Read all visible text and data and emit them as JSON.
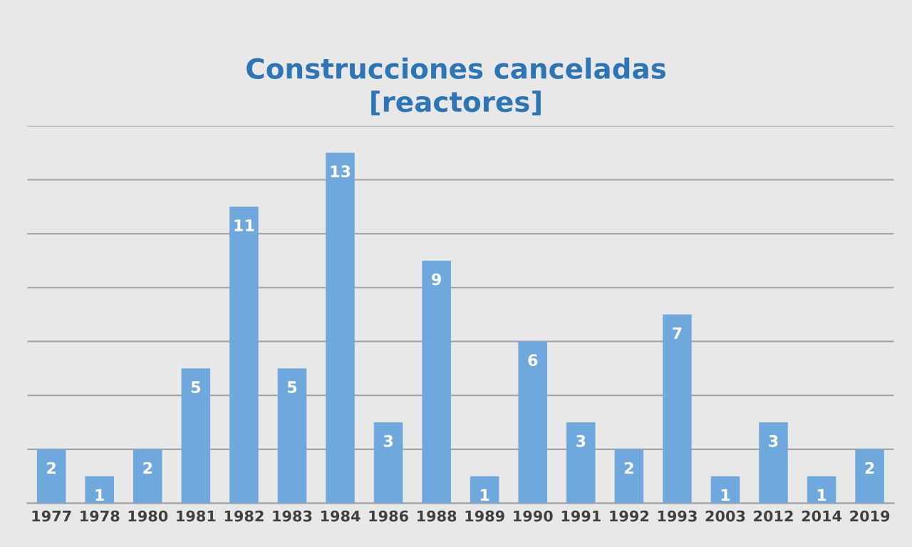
{
  "chart_data": {
    "type": "bar",
    "title": "Construcciones canceladas\n[reactores]",
    "categories": [
      "1977",
      "1978",
      "1980",
      "1981",
      "1982",
      "1983",
      "1984",
      "1986",
      "1988",
      "1989",
      "1990",
      "1991",
      "1992",
      "1993",
      "2003",
      "2012",
      "2014",
      "2019"
    ],
    "values": [
      2,
      1,
      2,
      5,
      11,
      5,
      13,
      3,
      9,
      1,
      6,
      3,
      2,
      7,
      1,
      3,
      1,
      2
    ],
    "color": "#6fa8dc",
    "ylim": [
      0,
      14
    ],
    "yticks": [
      {
        "value": 0,
        "label": null
      },
      {
        "value": 2,
        "label": null
      },
      {
        "value": 4,
        "label": null
      },
      {
        "value": 6,
        "label": null
      },
      {
        "value": 8,
        "label": null
      },
      {
        "value": 10,
        "label": null
      },
      {
        "value": 12,
        "label": null
      },
      {
        "value": 14,
        "label": null
      }
    ],
    "grid": "y",
    "data_labels": true,
    "tick_labels": "x"
  }
}
